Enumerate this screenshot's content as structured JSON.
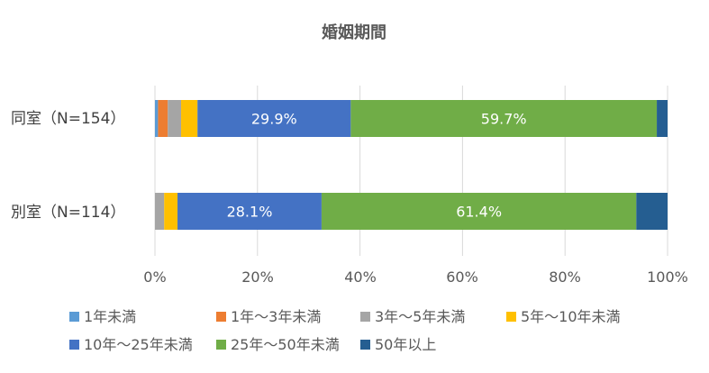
{
  "chart_data": {
    "type": "bar",
    "orientation": "horizontal",
    "stacked": "percent",
    "title": "婚姻期間",
    "categories": [
      "同室（N=154）",
      "別室（N=114）"
    ],
    "x_ticks": [
      "0%",
      "20%",
      "40%",
      "60%",
      "80%",
      "100%"
    ],
    "xlim": [
      0,
      100
    ],
    "legend_position": "bottom",
    "grid": "vertical",
    "series": [
      {
        "name": "1年未満",
        "color": "#5b9bd5",
        "values": [
          0.6,
          0.0
        ],
        "labels": [
          "",
          ""
        ]
      },
      {
        "name": "1年～3年未満",
        "color": "#ed7d31",
        "values": [
          1.9,
          0.0
        ],
        "labels": [
          "",
          ""
        ]
      },
      {
        "name": "3年～5年未満",
        "color": "#a5a5a5",
        "values": [
          2.6,
          1.8
        ],
        "labels": [
          "",
          ""
        ]
      },
      {
        "name": "5年～10年未満",
        "color": "#ffc000",
        "values": [
          3.2,
          2.6
        ],
        "labels": [
          "",
          ""
        ]
      },
      {
        "name": "10年～25年未満",
        "color": "#4472c4",
        "values": [
          29.9,
          28.1
        ],
        "labels": [
          "29.9%",
          "28.1%"
        ]
      },
      {
        "name": "25年～50年未満",
        "color": "#70ad47",
        "values": [
          59.7,
          61.4
        ],
        "labels": [
          "59.7%",
          "61.4%"
        ]
      },
      {
        "name": "50年以上",
        "color": "#255e91",
        "values": [
          2.1,
          6.1
        ],
        "labels": [
          "",
          ""
        ]
      }
    ]
  }
}
